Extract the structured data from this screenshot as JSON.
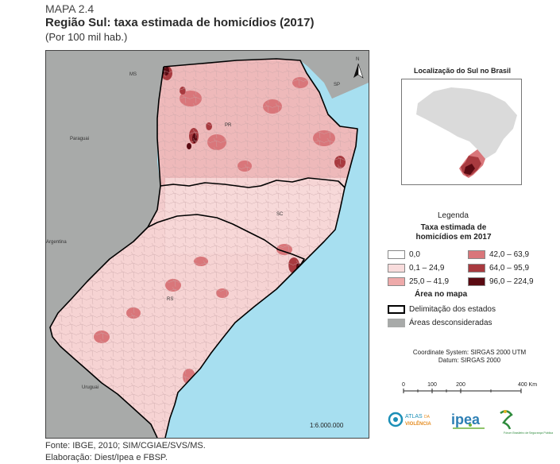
{
  "header": {
    "label": "MAPA 2.4",
    "title": "Região Sul: taxa estimada de homicídios (2017)",
    "subtitle": "(Por 100 mil hab.)"
  },
  "map": {
    "labels": {
      "ms": "MS",
      "sp": "SP",
      "paraguai": "Paraguai",
      "argentina": "Argentina",
      "uruguai": "Uruguai",
      "pr": "PR",
      "sc": "SC",
      "rs": "RS"
    },
    "north": "N",
    "scale_ratio": "1:6.000.000"
  },
  "inset": {
    "title": "Localização do Sul no Brasil"
  },
  "legend": {
    "title": "Legenda",
    "subtitle_line1": "Taxa estimada de",
    "subtitle_line2": "homicídios em 2017",
    "classes": [
      {
        "label": "0,0",
        "color": "#ffffff"
      },
      {
        "label": "0,1 – 24,9",
        "color": "#f8dcdc"
      },
      {
        "label": "25,0 – 41,9",
        "color": "#eeaaaa"
      },
      {
        "label": "42,0 – 63,9",
        "color": "#d9767a"
      },
      {
        "label": "64,0 – 95,9",
        "color": "#a83a3f"
      },
      {
        "label": "96,0 – 224,9",
        "color": "#5a0a12"
      }
    ],
    "area_title": "Área no mapa",
    "state_limits": "Delimitação dos estados",
    "disregarded": "Áreas desconsideradas"
  },
  "projection": {
    "coord_system": "Coordinate System: SIRGAS 2000 UTM",
    "datum": "Datum: SIRGAS 2000"
  },
  "scale": {
    "ticks": [
      "0",
      "100",
      "200",
      "400 Km"
    ]
  },
  "logos": {
    "atlas_line1": "ATLAS",
    "atlas_line1b": "DA",
    "atlas_line2": "VIOLÊNCIA",
    "ipea": "ipea",
    "fbsp_line1": "Fórum Brasileiro de",
    "fbsp_line2": "Segurança Pública"
  },
  "footer": {
    "source": "Fonte: IBGE, 2010; SIM/CGIAE/SVS/MS.",
    "elaboration": "Elaboração: Diest/Ipea e FBSP."
  },
  "colors": {
    "ocean": "#a7dff0",
    "neighbors": "#a8aaa9",
    "brazil_other": "#dadada",
    "state_border": "#000000"
  }
}
